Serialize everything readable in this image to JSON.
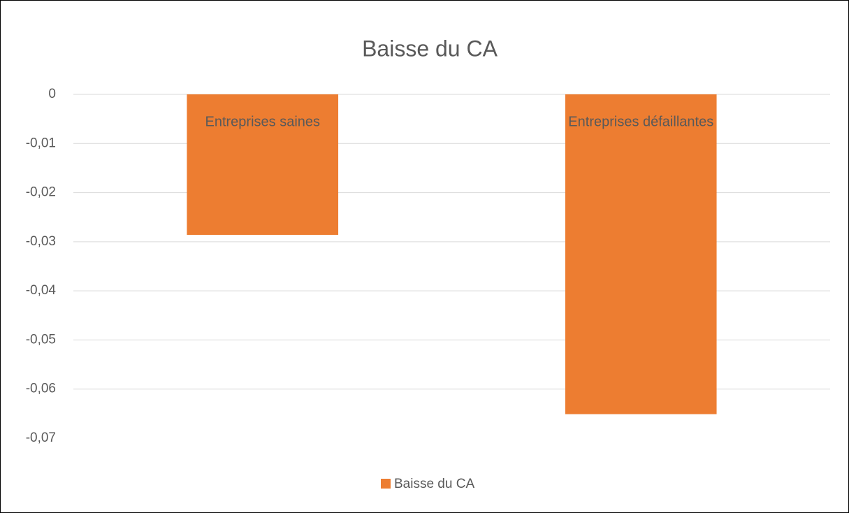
{
  "chart_data": {
    "type": "bar",
    "title": "Baisse du CA",
    "categories": [
      "Entreprises saines",
      "Entreprises défaillantes"
    ],
    "series": [
      {
        "name": "Baisse du CA",
        "color": "#ed7d31",
        "values": [
          -0.0286,
          -0.0651
        ]
      }
    ],
    "ylim": [
      -0.07,
      0
    ],
    "yticks": [
      0,
      {
        "value": -0.01,
        "label": "-0,01"
      },
      {
        "value": -0.02,
        "label": "-0,02"
      },
      {
        "value": -0.03,
        "label": "-0,03"
      },
      {
        "value": -0.04,
        "label": "-0,04"
      },
      {
        "value": -0.05,
        "label": "-0,05"
      },
      {
        "value": -0.06,
        "label": "-0,06"
      },
      {
        "value": -0.07,
        "label": "-0,07"
      }
    ],
    "grid": true,
    "legend": "bottom"
  }
}
